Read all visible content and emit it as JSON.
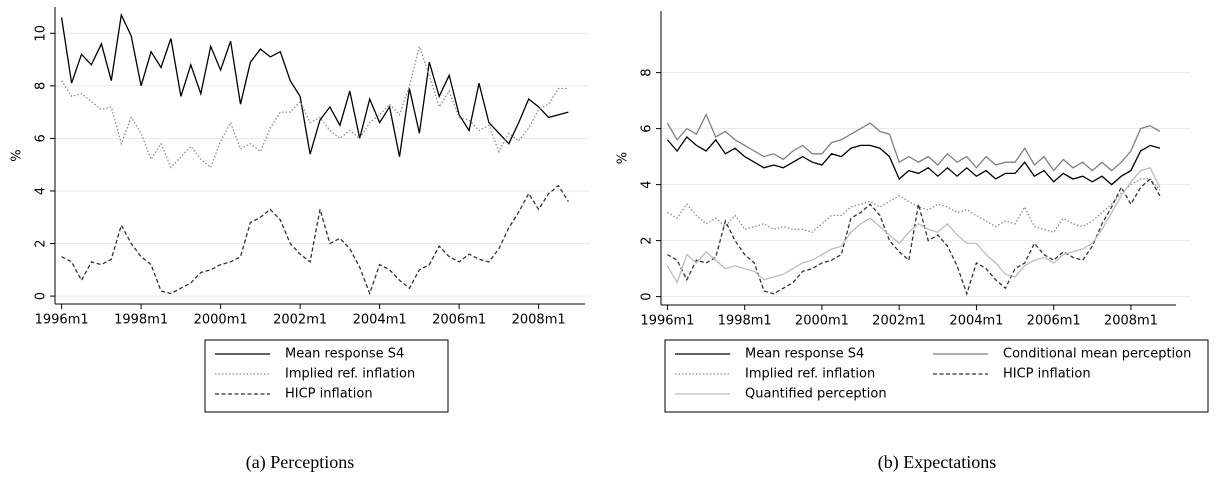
{
  "chart_data": [
    {
      "type": "line",
      "caption": "(a) Perceptions",
      "ylabel": "%",
      "grid": true,
      "legend_columns": 1,
      "xlim": [
        "1995m11",
        "2009m3"
      ],
      "ylim": [
        -0.3,
        11
      ],
      "xticks": [
        "1996m1",
        "1998m1",
        "2000m1",
        "2002m1",
        "2004m1",
        "2006m1",
        "2008m1"
      ],
      "yticks": [
        0,
        2,
        4,
        6,
        8,
        10
      ],
      "x": [
        "1996m1",
        "1996m4",
        "1996m7",
        "1996m10",
        "1997m1",
        "1997m4",
        "1997m7",
        "1997m10",
        "1998m1",
        "1998m4",
        "1998m7",
        "1998m10",
        "1999m1",
        "1999m4",
        "1999m7",
        "1999m10",
        "2000m1",
        "2000m4",
        "2000m7",
        "2000m10",
        "2001m1",
        "2001m4",
        "2001m7",
        "2001m10",
        "2002m1",
        "2002m4",
        "2002m7",
        "2002m10",
        "2003m1",
        "2003m4",
        "2003m7",
        "2003m10",
        "2004m1",
        "2004m4",
        "2004m7",
        "2004m10",
        "2005m1",
        "2005m4",
        "2005m7",
        "2005m10",
        "2006m1",
        "2006m4",
        "2006m7",
        "2006m10",
        "2007m1",
        "2007m4",
        "2007m7",
        "2007m10",
        "2008m1",
        "2008m4",
        "2008m7",
        "2008m10"
      ],
      "series": [
        {
          "name": "Mean response S4",
          "color": "#000000",
          "dash": "solid",
          "values": [
            10.6,
            8.1,
            9.2,
            8.8,
            9.6,
            8.2,
            10.7,
            9.9,
            8.0,
            9.3,
            8.7,
            9.8,
            7.6,
            8.8,
            7.7,
            9.5,
            8.6,
            9.7,
            7.3,
            8.9,
            9.4,
            9.1,
            9.3,
            8.2,
            7.6,
            5.4,
            6.7,
            7.2,
            6.5,
            7.8,
            6.0,
            7.5,
            6.6,
            7.2,
            5.3,
            7.9,
            6.2,
            8.9,
            7.6,
            8.4,
            6.9,
            6.3,
            8.1,
            6.6,
            6.2,
            5.8,
            6.6,
            7.5,
            7.2,
            6.8,
            6.9,
            7.0
          ]
        },
        {
          "name": "Implied ref. inflation",
          "color": "#8c8c8c",
          "dash": "dotted",
          "values": [
            8.2,
            7.6,
            7.7,
            7.4,
            7.1,
            7.2,
            5.8,
            6.8,
            6.2,
            5.2,
            5.8,
            4.9,
            5.3,
            5.7,
            5.2,
            4.9,
            5.9,
            6.6,
            5.6,
            5.8,
            5.5,
            6.4,
            7.0,
            7.0,
            7.4,
            6.6,
            6.8,
            6.3,
            6.0,
            6.3,
            6.0,
            6.6,
            6.9,
            7.3,
            6.9,
            8.0,
            9.5,
            8.4,
            7.2,
            7.8,
            6.8,
            6.7,
            6.3,
            6.5,
            5.5,
            6.2,
            5.9,
            6.4,
            7.1,
            7.3,
            7.9,
            7.9
          ]
        },
        {
          "name": "HICP inflation",
          "color": "#333333",
          "dash": "dashed",
          "values": [
            1.5,
            1.3,
            0.6,
            1.3,
            1.2,
            1.4,
            2.7,
            2.0,
            1.5,
            1.2,
            0.2,
            0.1,
            0.3,
            0.5,
            0.9,
            1.0,
            1.2,
            1.3,
            1.5,
            2.8,
            3.0,
            3.3,
            2.9,
            2.0,
            1.6,
            1.3,
            3.3,
            2.0,
            2.2,
            1.8,
            1.1,
            0.1,
            1.2,
            1.0,
            0.6,
            0.3,
            1.0,
            1.2,
            1.9,
            1.5,
            1.3,
            1.6,
            1.4,
            1.3,
            1.8,
            2.6,
            3.2,
            3.9,
            3.3,
            3.9,
            4.2,
            3.6
          ]
        }
      ]
    },
    {
      "type": "line",
      "caption": "(b) Expectations",
      "ylabel": "%",
      "grid": true,
      "legend_columns": 2,
      "xlim": [
        "1995m11",
        "2009m3"
      ],
      "ylim": [
        -0.3,
        10.2
      ],
      "xticks": [
        "1996m1",
        "1998m1",
        "2000m1",
        "2002m1",
        "2004m1",
        "2006m1",
        "2008m1"
      ],
      "yticks": [
        0,
        2,
        4,
        6,
        8
      ],
      "x": [
        "1996m1",
        "1996m4",
        "1996m7",
        "1996m10",
        "1997m1",
        "1997m4",
        "1997m7",
        "1997m10",
        "1998m1",
        "1998m4",
        "1998m7",
        "1998m10",
        "1999m1",
        "1999m4",
        "1999m7",
        "1999m10",
        "2000m1",
        "2000m4",
        "2000m7",
        "2000m10",
        "2001m1",
        "2001m4",
        "2001m7",
        "2001m10",
        "2002m1",
        "2002m4",
        "2002m7",
        "2002m10",
        "2003m1",
        "2003m4",
        "2003m7",
        "2003m10",
        "2004m1",
        "2004m4",
        "2004m7",
        "2004m10",
        "2005m1",
        "2005m4",
        "2005m7",
        "2005m10",
        "2006m1",
        "2006m4",
        "2006m7",
        "2006m10",
        "2007m1",
        "2007m4",
        "2007m7",
        "2007m10",
        "2008m1",
        "2008m4",
        "2008m7",
        "2008m10"
      ],
      "series": [
        {
          "name": "Mean response S4",
          "color": "#000000",
          "dash": "solid",
          "values": [
            5.6,
            5.2,
            5.7,
            5.4,
            5.2,
            5.6,
            5.1,
            5.3,
            5.0,
            4.8,
            4.6,
            4.7,
            4.6,
            4.8,
            5.0,
            4.8,
            4.7,
            5.1,
            5.0,
            5.3,
            5.4,
            5.4,
            5.3,
            5.0,
            4.2,
            4.5,
            4.4,
            4.6,
            4.3,
            4.6,
            4.3,
            4.6,
            4.3,
            4.5,
            4.2,
            4.4,
            4.4,
            4.8,
            4.3,
            4.5,
            4.1,
            4.4,
            4.2,
            4.3,
            4.1,
            4.3,
            4.0,
            4.3,
            4.5,
            5.2,
            5.4,
            5.3
          ]
        },
        {
          "name": "Conditional mean perception",
          "color": "#808080",
          "dash": "solid",
          "values": [
            6.2,
            5.6,
            6.0,
            5.8,
            6.5,
            5.7,
            5.9,
            5.6,
            5.4,
            5.2,
            5.0,
            5.1,
            4.9,
            5.2,
            5.4,
            5.1,
            5.1,
            5.5,
            5.6,
            5.8,
            6.0,
            6.2,
            5.9,
            5.8,
            4.8,
            5.0,
            4.8,
            5.0,
            4.7,
            5.1,
            4.8,
            5.0,
            4.6,
            5.0,
            4.7,
            4.8,
            4.8,
            5.3,
            4.7,
            5.0,
            4.5,
            4.9,
            4.6,
            4.8,
            4.5,
            4.8,
            4.5,
            4.8,
            5.2,
            6.0,
            6.1,
            5.9
          ]
        },
        {
          "name": "Implied ref. inflation",
          "color": "#8c8c8c",
          "dash": "dotted",
          "values": [
            3.0,
            2.8,
            3.3,
            2.9,
            2.6,
            2.8,
            2.5,
            2.9,
            2.4,
            2.5,
            2.6,
            2.4,
            2.5,
            2.4,
            2.4,
            2.3,
            2.6,
            2.9,
            2.9,
            3.2,
            3.3,
            3.4,
            3.2,
            3.4,
            3.6,
            3.4,
            3.2,
            3.1,
            3.3,
            3.2,
            3.0,
            3.1,
            2.9,
            2.7,
            2.5,
            2.7,
            2.6,
            3.2,
            2.5,
            2.4,
            2.3,
            2.8,
            2.6,
            2.5,
            2.7,
            3.0,
            3.3,
            3.7,
            4.0,
            4.2,
            4.2,
            3.8
          ]
        },
        {
          "name": "HICP inflation",
          "color": "#333333",
          "dash": "dashed",
          "values": [
            1.5,
            1.3,
            0.6,
            1.3,
            1.2,
            1.4,
            2.7,
            2.0,
            1.5,
            1.2,
            0.2,
            0.1,
            0.3,
            0.5,
            0.9,
            1.0,
            1.2,
            1.3,
            1.5,
            2.8,
            3.0,
            3.3,
            2.9,
            2.0,
            1.6,
            1.3,
            3.3,
            2.0,
            2.2,
            1.8,
            1.1,
            0.1,
            1.2,
            1.0,
            0.6,
            0.3,
            1.0,
            1.2,
            1.9,
            1.5,
            1.3,
            1.6,
            1.4,
            1.3,
            1.8,
            2.6,
            3.2,
            3.9,
            3.3,
            3.9,
            4.2,
            3.6
          ]
        },
        {
          "name": "Quantified perception",
          "color": "#bdbdbd",
          "dash": "solid",
          "values": [
            1.1,
            0.5,
            1.5,
            1.2,
            1.6,
            1.3,
            1.0,
            1.1,
            1.0,
            0.9,
            0.6,
            0.7,
            0.8,
            1.0,
            1.2,
            1.3,
            1.5,
            1.7,
            1.8,
            2.3,
            2.6,
            2.8,
            2.5,
            2.2,
            1.9,
            2.3,
            2.6,
            2.4,
            2.3,
            2.6,
            2.2,
            1.9,
            1.9,
            1.5,
            1.2,
            0.8,
            0.7,
            1.1,
            1.3,
            1.4,
            1.2,
            1.5,
            1.6,
            1.7,
            1.9,
            2.4,
            3.0,
            3.6,
            4.1,
            4.5,
            4.6,
            3.9
          ]
        }
      ]
    }
  ]
}
